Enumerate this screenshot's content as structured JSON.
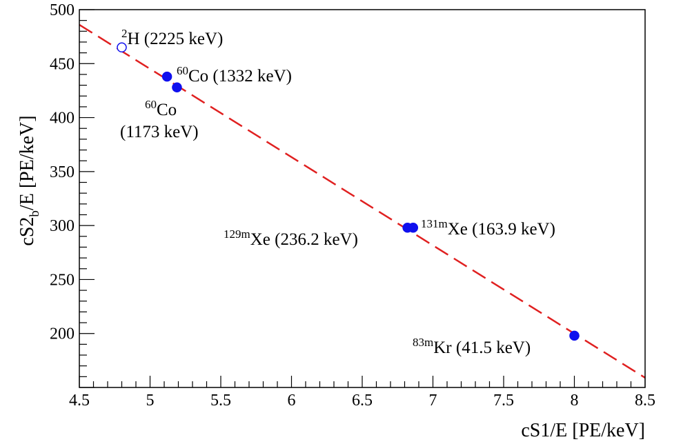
{
  "chart_data": {
    "type": "scatter",
    "xlabel": "cS1/E [PE/keV]",
    "ylabel": {
      "main": "cS2",
      "sub": "b",
      "rest": "/E [PE/keV]"
    },
    "xlim": [
      4.5,
      8.5
    ],
    "ylim": [
      150,
      500
    ],
    "x_major_ticks": [
      4.5,
      5,
      5.5,
      6,
      6.5,
      7,
      7.5,
      8,
      8.5
    ],
    "x_tick_labels": [
      "4.5",
      "5",
      "5.5",
      "6",
      "6.5",
      "7",
      "7.5",
      "8",
      "8.5"
    ],
    "y_major_ticks": [
      200,
      250,
      300,
      350,
      400,
      450,
      500
    ],
    "y_tick_labels": [
      "200",
      "250",
      "300",
      "350",
      "400",
      "450",
      "500"
    ],
    "x_minor_step": 0.1,
    "y_minor_step": 10,
    "grid": false,
    "fit_line": {
      "style": "dashed",
      "color": "#e02020",
      "points": [
        [
          4.5,
          486
        ],
        [
          8.5,
          159
        ]
      ]
    },
    "points": [
      {
        "x": 4.8,
        "y": 465,
        "filled": false
      },
      {
        "x": 5.12,
        "y": 438,
        "filled": true
      },
      {
        "x": 5.19,
        "y": 428,
        "filled": true
      },
      {
        "x": 6.82,
        "y": 298,
        "filled": true
      },
      {
        "x": 6.86,
        "y": 298,
        "filled": true
      },
      {
        "x": 8.0,
        "y": 198,
        "filled": true
      }
    ],
    "point_color": "#1010ee",
    "annotations": [
      {
        "sup": "2",
        "line1": "H (2225 keV)"
      },
      {
        "sup": "60",
        "line1": "Co (1332 keV)"
      },
      {
        "sup": "60",
        "line1": "Co",
        "line2": "(1173 keV)"
      },
      {
        "sup": "129m",
        "line1": "Xe (236.2 keV)"
      },
      {
        "sup": "131m",
        "line1": "Xe (163.9 keV)"
      },
      {
        "sup": "83m",
        "line1": "Kr (41.5 keV)"
      }
    ]
  }
}
